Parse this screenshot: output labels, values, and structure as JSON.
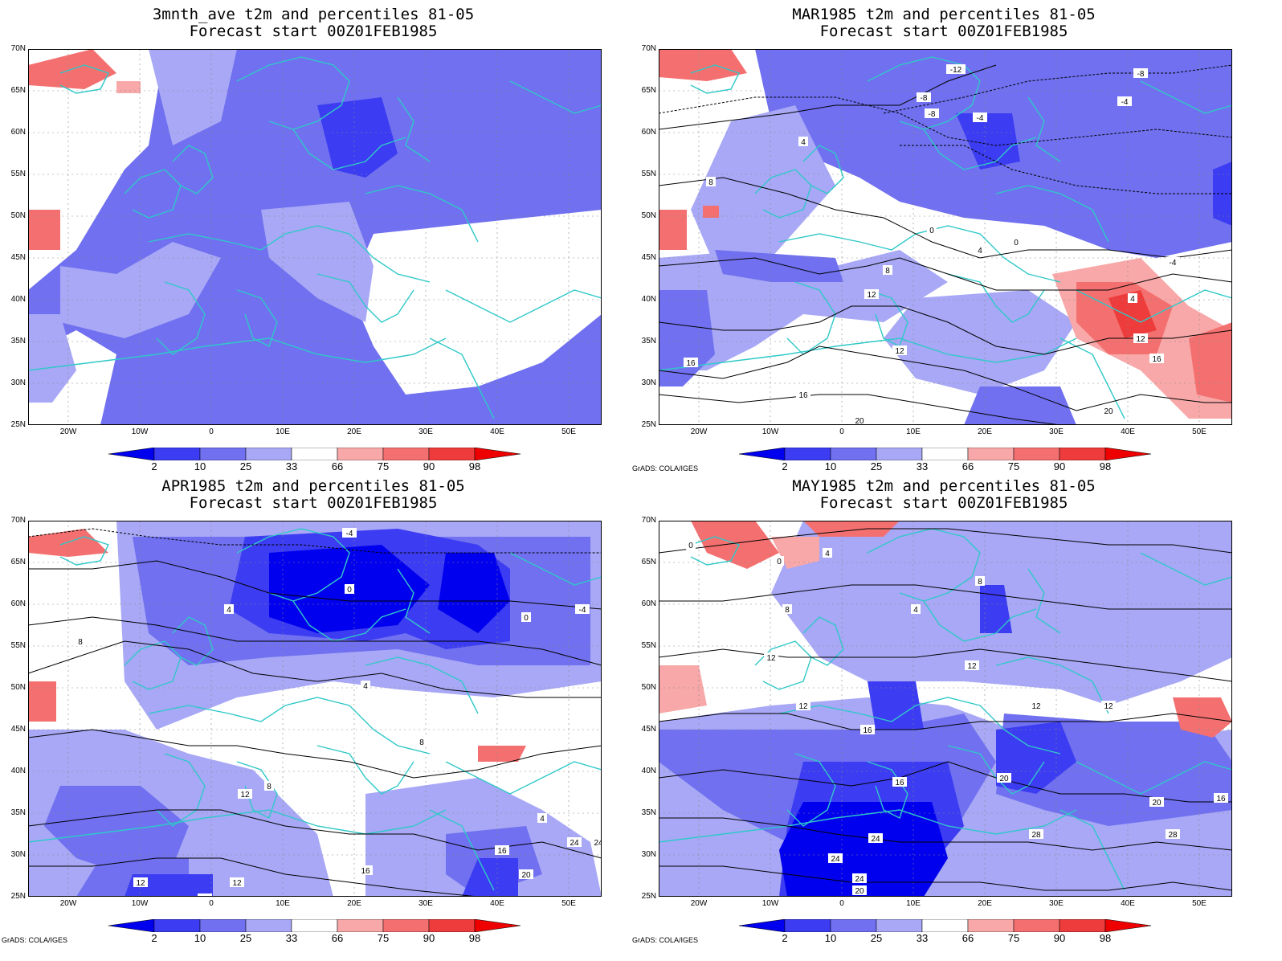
{
  "panels": [
    {
      "title1": "3mnth_ave t2m and percentiles 81-05",
      "title2": "Forecast start 00Z01FEB1985",
      "credit": "",
      "contours": []
    },
    {
      "title1": "MAR1985 t2m and percentiles 81-05",
      "title2": "Forecast start 00Z01FEB1985",
      "credit": "GrADS: COLA/IGES",
      "contours": [
        "-12",
        "-8",
        "-8",
        "-4",
        "-8",
        "-4",
        "4",
        "8",
        "0",
        "0",
        "4",
        "8",
        "12",
        "16",
        "20",
        "16",
        "12",
        "12",
        "16",
        "20",
        "4",
        "-4"
      ]
    },
    {
      "title1": "APR1985 t2m and percentiles 81-05",
      "title2": "Forecast start 00Z01FEB1985",
      "credit": "GrADS: COLA/IGES",
      "contours": [
        "-4",
        "0",
        "4",
        "8",
        "4",
        "0",
        "-4",
        "8",
        "4",
        "12",
        "8",
        "16",
        "12",
        "20",
        "12",
        "16",
        "20",
        "24",
        "24"
      ]
    },
    {
      "title1": "MAY1985 t2m and percentiles 81-05",
      "title2": "Forecast start 00Z01FEB1985",
      "credit": "GrADS: COLA/IGES",
      "contours": [
        "0",
        "0",
        "4",
        "8",
        "4",
        "8",
        "12",
        "12",
        "12",
        "16",
        "12",
        "16",
        "20",
        "24",
        "28",
        "24",
        "20",
        "24",
        "28",
        "16",
        "20",
        "12"
      ]
    }
  ],
  "lat_labels": [
    "70N",
    "65N",
    "60N",
    "55N",
    "50N",
    "45N",
    "40N",
    "35N",
    "30N",
    "25N"
  ],
  "lon_labels": [
    "20W",
    "10W",
    "0",
    "10E",
    "20E",
    "30E",
    "40E",
    "50E"
  ],
  "colorbar": {
    "labels": [
      "2",
      "10",
      "25",
      "33",
      "66",
      "75",
      "90",
      "98"
    ],
    "colors": [
      "#0000ee",
      "#3c3cf2",
      "#7070f0",
      "#a8a8f6",
      "#ffffff",
      "#f8a8a8",
      "#f47070",
      "#ee3c3c",
      "#ee0000"
    ]
  },
  "coastline_color": "#30c8c8"
}
